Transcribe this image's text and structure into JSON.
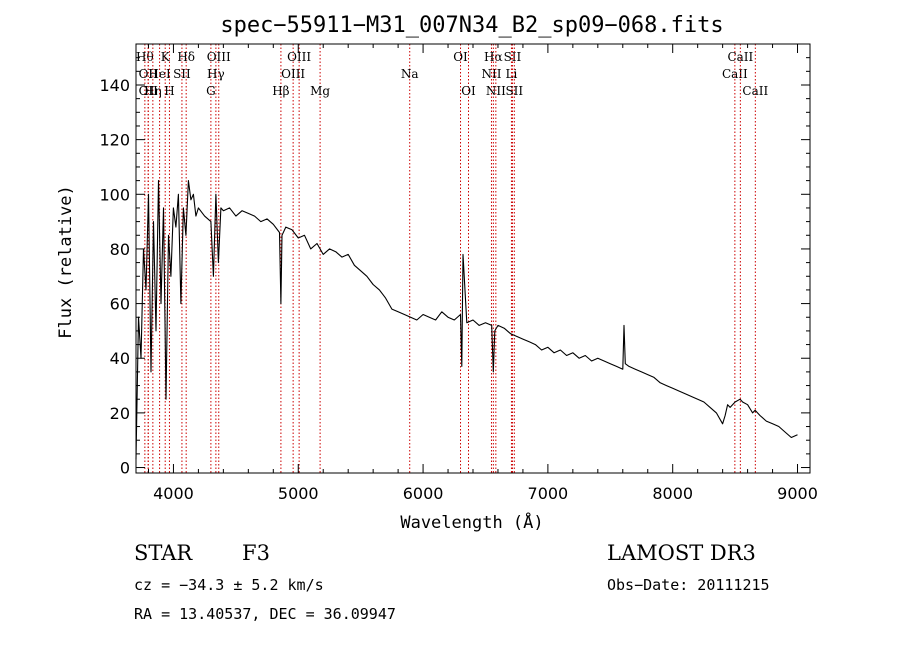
{
  "chart_data": {
    "type": "line",
    "title": "spec−55911−M31_007N34_B2_sp09−068.fits",
    "xlabel": "Wavelength (Å)",
    "ylabel": "Flux (relative)",
    "xlim": [
      3700,
      9100
    ],
    "ylim": [
      -2,
      155
    ],
    "xticks": [
      4000,
      5000,
      6000,
      7000,
      8000,
      9000
    ],
    "yticks": [
      0,
      20,
      40,
      60,
      80,
      100,
      120,
      140
    ],
    "series": [
      {
        "name": "spectrum",
        "x": [
          3700,
          3720,
          3740,
          3760,
          3780,
          3800,
          3820,
          3840,
          3860,
          3880,
          3900,
          3920,
          3940,
          3960,
          3980,
          4000,
          4020,
          4040,
          4060,
          4080,
          4100,
          4120,
          4140,
          4160,
          4180,
          4200,
          4250,
          4300,
          4320,
          4340,
          4360,
          4380,
          4400,
          4450,
          4500,
          4550,
          4600,
          4650,
          4700,
          4750,
          4800,
          4850,
          4861,
          4870,
          4900,
          4950,
          5000,
          5050,
          5100,
          5150,
          5200,
          5250,
          5300,
          5350,
          5400,
          5450,
          5500,
          5550,
          5600,
          5650,
          5700,
          5750,
          5800,
          5850,
          5900,
          5950,
          6000,
          6050,
          6100,
          6150,
          6200,
          6250,
          6300,
          6310,
          6320,
          6350,
          6400,
          6450,
          6500,
          6550,
          6563,
          6575,
          6600,
          6650,
          6700,
          6750,
          6800,
          6850,
          6900,
          6950,
          7000,
          7050,
          7100,
          7150,
          7200,
          7250,
          7300,
          7350,
          7400,
          7450,
          7500,
          7550,
          7600,
          7610,
          7620,
          7650,
          7700,
          7750,
          7800,
          7850,
          7900,
          7950,
          8000,
          8050,
          8100,
          8150,
          8200,
          8250,
          8300,
          8350,
          8400,
          8420,
          8440,
          8460,
          8500,
          8540,
          8560,
          8600,
          8640,
          8660,
          8700,
          8750,
          8800,
          8850,
          8900,
          8950,
          9000
        ],
        "y": [
          3,
          55,
          40,
          80,
          65,
          100,
          35,
          90,
          50,
          105,
          60,
          95,
          25,
          85,
          70,
          95,
          88,
          100,
          60,
          95,
          85,
          105,
          98,
          100,
          92,
          95,
          92,
          90,
          70,
          100,
          75,
          95,
          94,
          95,
          92,
          94,
          93,
          92,
          90,
          91,
          89,
          86,
          60,
          85,
          88,
          87,
          84,
          85,
          80,
          82,
          78,
          80,
          79,
          77,
          78,
          74,
          72,
          70,
          67,
          65,
          62,
          58,
          57,
          56,
          55,
          54,
          56,
          55,
          54,
          57,
          55,
          54,
          56,
          37,
          78,
          53,
          54,
          52,
          53,
          52,
          35,
          50,
          52,
          51,
          49,
          48,
          47,
          46,
          45,
          43,
          44,
          42,
          43,
          41,
          42,
          40,
          41,
          39,
          40,
          39,
          38,
          37,
          36,
          52,
          38,
          37,
          36,
          35,
          34,
          33,
          31,
          30,
          29,
          28,
          27,
          26,
          25,
          24,
          22,
          20,
          16,
          19,
          23,
          22,
          24,
          25,
          24,
          23,
          20,
          21,
          19,
          17,
          16,
          15,
          13,
          11,
          12
        ]
      }
    ],
    "lines": [
      {
        "lam": 3771,
        "label": "Hθ",
        "row": 0
      },
      {
        "lam": 3798,
        "label": "OII",
        "row": 1
      },
      {
        "lam": 3798,
        "label": "OII",
        "row": 2
      },
      {
        "lam": 3835,
        "label": "Hη",
        "row": 2
      },
      {
        "lam": 3889,
        "label": "HeI",
        "row": 1
      },
      {
        "lam": 3934,
        "label": "K",
        "row": 0
      },
      {
        "lam": 3968,
        "label": "H",
        "row": 2
      },
      {
        "lam": 4068,
        "label": "SII",
        "row": 1
      },
      {
        "lam": 4102,
        "label": "Hδ",
        "row": 0
      },
      {
        "lam": 4300,
        "label": "G",
        "row": 2
      },
      {
        "lam": 4340,
        "label": "Hγ",
        "row": 1
      },
      {
        "lam": 4363,
        "label": "OIII",
        "row": 0
      },
      {
        "lam": 4861,
        "label": "Hβ",
        "row": 2
      },
      {
        "lam": 4959,
        "label": "OIII",
        "row": 1
      },
      {
        "lam": 5007,
        "label": "OIII",
        "row": 0
      },
      {
        "lam": 5175,
        "label": "Mg",
        "row": 2
      },
      {
        "lam": 5893,
        "label": "Na",
        "row": 1
      },
      {
        "lam": 6300,
        "label": "OI",
        "row": 0
      },
      {
        "lam": 6364,
        "label": "OI",
        "row": 2
      },
      {
        "lam": 6548,
        "label": "NII",
        "row": 1
      },
      {
        "lam": 6563,
        "label": "Hα",
        "row": 0
      },
      {
        "lam": 6583,
        "label": "NII",
        "row": 2
      },
      {
        "lam": 6708,
        "label": "Li",
        "row": 1
      },
      {
        "lam": 6716,
        "label": "SII",
        "row": 0
      },
      {
        "lam": 6731,
        "label": "SII",
        "row": 2
      },
      {
        "lam": 8498,
        "label": "CaII",
        "row": 1
      },
      {
        "lam": 8542,
        "label": "CaII",
        "row": 0
      },
      {
        "lam": 8662,
        "label": "CaII",
        "row": 2
      }
    ]
  },
  "info": {
    "class": "STAR",
    "subclass": "F3",
    "cz": "cz = −34.3 ± 5.2 km/s",
    "coords": "RA =  13.40537, DEC =  36.09947",
    "survey": "LAMOST DR3",
    "obsdate": "Obs−Date: 20111215"
  },
  "colors": {
    "axis": "#000000",
    "line": "#000000",
    "marker": "#cc0000"
  }
}
